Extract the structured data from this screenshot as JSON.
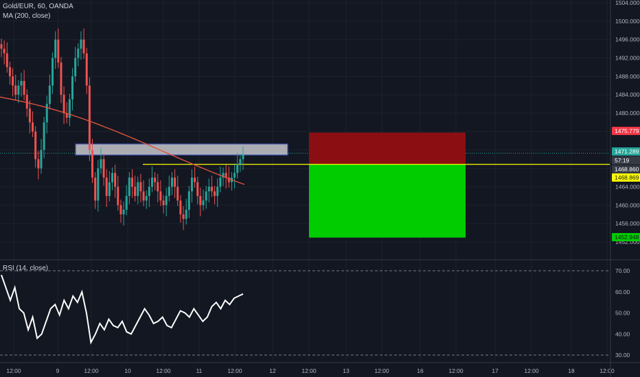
{
  "header": {
    "symbol_line": "Gold/EUR, 60, OANDA",
    "ma_line": "MA (200, close)",
    "rsi_line": "RSI (14, close)"
  },
  "colors": {
    "background": "#131722",
    "grid": "#1e222d",
    "up": "#26a69a",
    "down": "#ef5350",
    "ma": "#e0533d",
    "yellow_line": "#ffff00",
    "zone_fill": "#c8c8cc",
    "zone_border": "#3f51b5",
    "stop_zone": "#8b0f12",
    "target_zone": "#00cc00",
    "rsi": "#ffffff"
  },
  "chart_data": [
    {
      "type": "candlestick",
      "title": "Gold/EUR, 60, OANDA",
      "ylim": [
        1450.8,
        1505.0
      ],
      "y_ticks": [
        "1504.000",
        "1500.000",
        "1496.000",
        "1492.000",
        "1488.000",
        "1484.000",
        "1480.000",
        "1476.000",
        "1472.000",
        "1468.000",
        "1464.000",
        "1460.000",
        "1456.000",
        "1452.000"
      ],
      "x_ticks": [
        "12:00",
        "9",
        "12:00",
        "10",
        "12:00",
        "11",
        "12:00",
        "12",
        "12:00",
        "13",
        "12:00",
        "16",
        "12:00",
        "17",
        "12:00",
        "18",
        "12:00"
      ],
      "indicator": "MA (200, close)",
      "price_labels": [
        {
          "value": "1475.779",
          "color": "#f23645",
          "text_color": "#ffffff"
        },
        {
          "value": "1471.289",
          "color": "#26a69a",
          "text_color": "#ffffff"
        },
        {
          "value": "57:19",
          "color": "#363a45",
          "text_color": "#ffffff"
        },
        {
          "value": "1468.860",
          "color": "#363a45",
          "text_color": "#ffffff"
        },
        {
          "value": "1468.869",
          "color": "#ffff00",
          "text_color": "#131722"
        },
        {
          "value": "1452.948",
          "color": "#00cc00",
          "text_color": "#131722"
        }
      ],
      "horizontal_line": 1468.869,
      "resistance_zone": [
        1470.9,
        1473.3
      ],
      "stop_zone": [
        1468.869,
        1475.779
      ],
      "target_zone": [
        1452.948,
        1468.869
      ],
      "price_approx": [
        1494,
        1493,
        1490,
        1488,
        1486,
        1484,
        1486,
        1487,
        1484,
        1481,
        1478,
        1476,
        1470,
        1468,
        1472,
        1478,
        1482,
        1486,
        1492,
        1496,
        1491,
        1484,
        1480,
        1479,
        1483,
        1488,
        1492,
        1494,
        1496,
        1493,
        1486,
        1472,
        1466,
        1461,
        1468,
        1470,
        1466,
        1462,
        1465,
        1467,
        1464,
        1460,
        1458,
        1459,
        1462,
        1466,
        1464,
        1462,
        1465,
        1463,
        1461,
        1462,
        1464,
        1466,
        1465,
        1463,
        1461,
        1460,
        1462,
        1464,
        1466,
        1464,
        1461,
        1458,
        1457,
        1459,
        1463,
        1466,
        1465,
        1462,
        1460,
        1461,
        1463,
        1464,
        1463,
        1462,
        1464,
        1466,
        1467,
        1466,
        1465,
        1466,
        1467,
        1469,
        1470,
        1471
      ]
    },
    {
      "type": "line",
      "title": "RSI (14, close)",
      "ylim": [
        25,
        74
      ],
      "y_ticks": [
        "70.00",
        "60.00",
        "50.00",
        "40.00",
        "30.00"
      ],
      "levels": [
        70,
        30
      ],
      "values": [
        68,
        62,
        56,
        62,
        52,
        50,
        42,
        48,
        38,
        40,
        46,
        52,
        54,
        49,
        56,
        52,
        58,
        55,
        60,
        50,
        36,
        40,
        45,
        42,
        47,
        44,
        43,
        46,
        41,
        40,
        44,
        48,
        52,
        49,
        45,
        46,
        48,
        44,
        43,
        47,
        51,
        50,
        48,
        52,
        49,
        46,
        48,
        53,
        55,
        52,
        56,
        54,
        57,
        58,
        59
      ]
    }
  ]
}
